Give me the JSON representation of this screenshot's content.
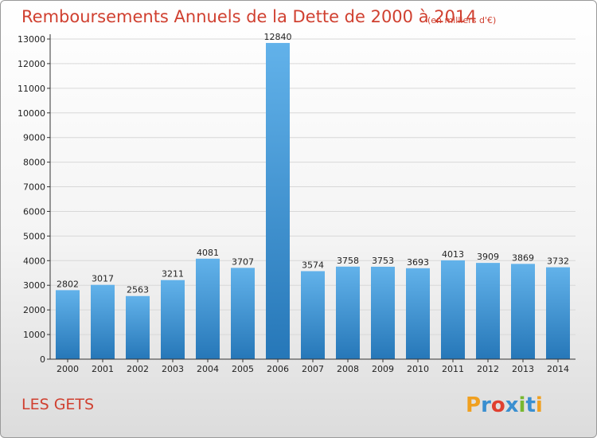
{
  "header": {
    "title": "Remboursements Annuels de la Dette de 2000 à 2014",
    "subtitle": "(en milliers d'€)"
  },
  "footer": {
    "commune": "LES GETS",
    "logo_text": "Proxiti"
  },
  "colors": {
    "bar_light": "#62b2ea",
    "bar_dark": "#2677b8",
    "title": "#d04030",
    "grid": "#d8d8d8"
  },
  "chart_data": {
    "type": "bar",
    "title": "Remboursements Annuels de la Dette de 2000 à 2014",
    "subtitle": "(en milliers d'€)",
    "categories": [
      "2000",
      "2001",
      "2002",
      "2003",
      "2004",
      "2005",
      "2006",
      "2007",
      "2008",
      "2009",
      "2010",
      "2011",
      "2012",
      "2013",
      "2014"
    ],
    "values": [
      2802,
      3017,
      2563,
      3211,
      4081,
      3707,
      12840,
      3574,
      3758,
      3753,
      3693,
      4013,
      3909,
      3869,
      3732
    ],
    "ylim": [
      0,
      13000
    ],
    "yticks": [
      0,
      1000,
      2000,
      3000,
      4000,
      5000,
      6000,
      7000,
      8000,
      9000,
      10000,
      11000,
      12000,
      13000
    ],
    "grid": true,
    "legend": "none",
    "data_labels": true
  }
}
